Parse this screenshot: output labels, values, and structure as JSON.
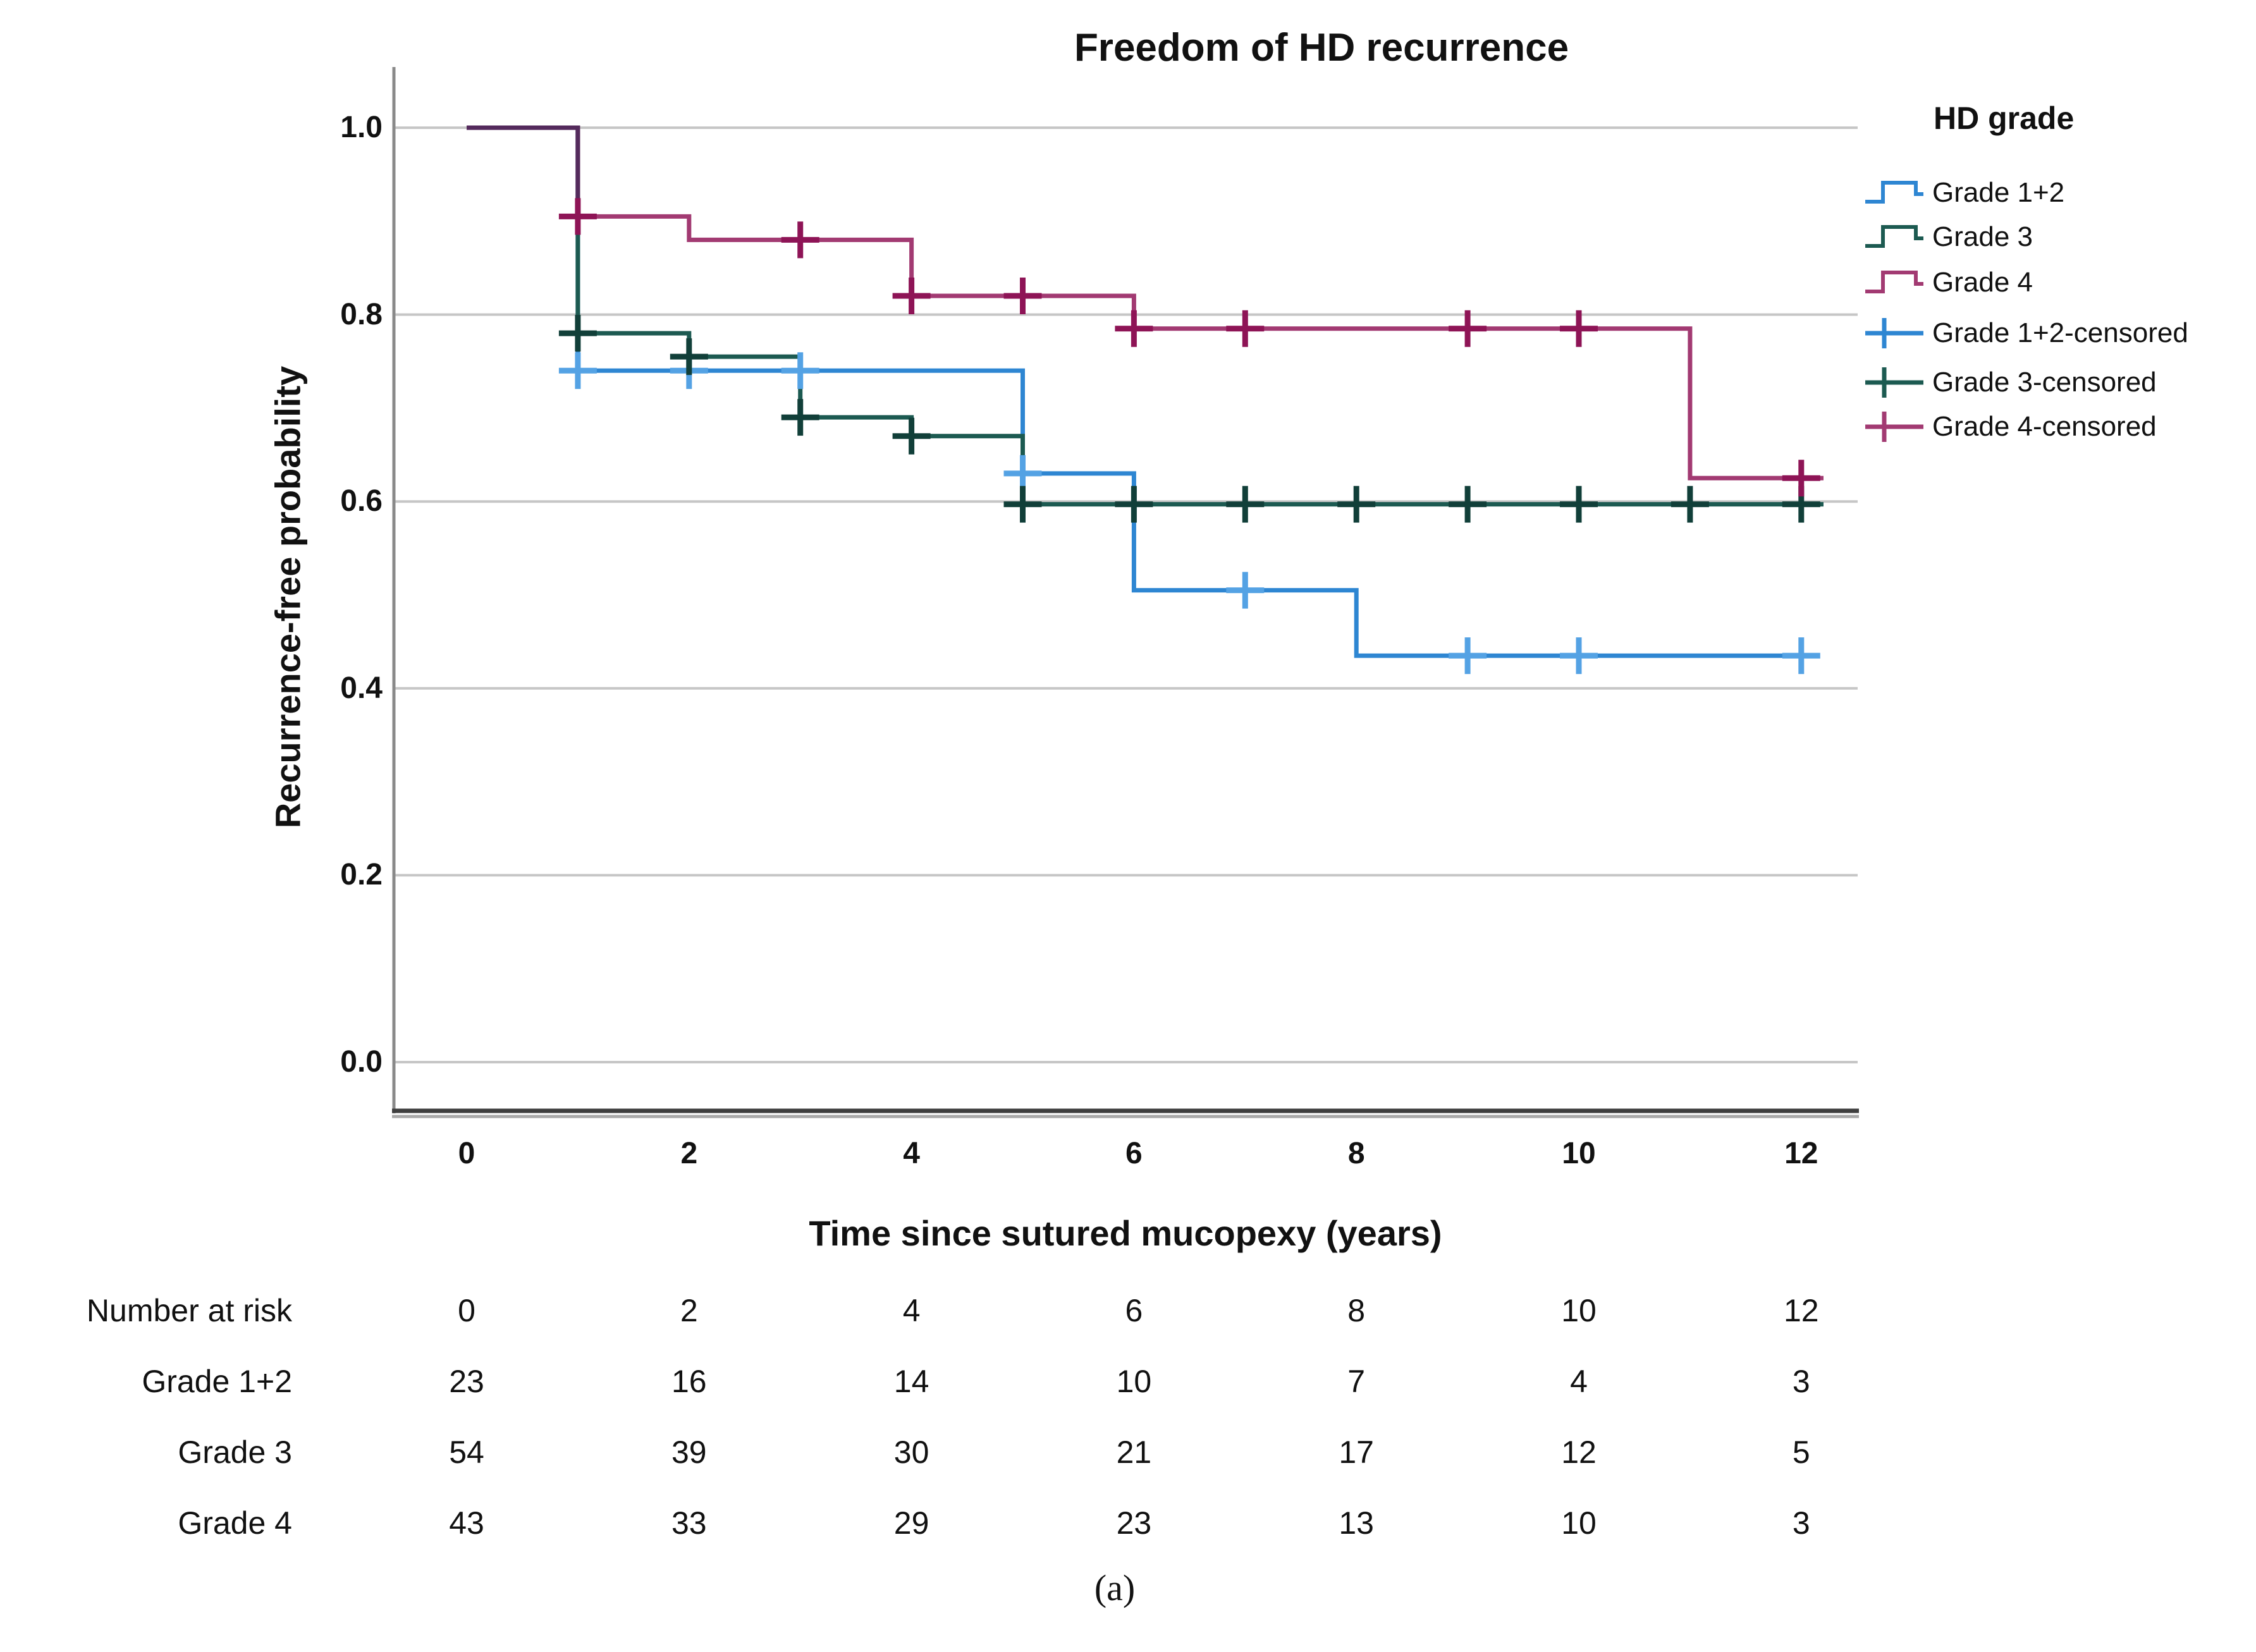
{
  "title": "Freedom of HD recurrence",
  "caption": "(a)",
  "axes": {
    "y_label": "Recurrence-free probability",
    "x_label": "Time since sutured mucopexy (years)",
    "y_tick_labels": [
      "1.0",
      "0.8",
      "0.6",
      "0.4",
      "0.2",
      "0.0"
    ],
    "y_tick_values": [
      1.0,
      0.8,
      0.6,
      0.4,
      0.2,
      0.0
    ],
    "x_tick_labels": [
      "0",
      "2",
      "4",
      "6",
      "8",
      "10",
      "12"
    ],
    "x_tick_values": [
      0,
      2,
      4,
      6,
      8,
      10,
      12
    ]
  },
  "legend": {
    "title": "HD grade",
    "entries": [
      {
        "label": "Grade 1+2",
        "type": "step",
        "color": "#2E86D2"
      },
      {
        "label": "Grade 3",
        "type": "step",
        "color": "#1C5A51"
      },
      {
        "label": "Grade 4",
        "type": "step",
        "color": "#A23A72"
      },
      {
        "label": "Grade 1+2-censored",
        "type": "plus",
        "color": "#2E86D2"
      },
      {
        "label": "Grade 3-censored",
        "type": "plus",
        "color": "#1C5A51"
      },
      {
        "label": "Grade 4-censored",
        "type": "plus",
        "color": "#A23A72"
      }
    ]
  },
  "chart_data": {
    "type": "line",
    "subtype": "kaplan-meier-step",
    "title": "Freedom of HD recurrence",
    "xlabel": "Time since sutured mucopexy (years)",
    "ylabel": "Recurrence-free probability",
    "xlim": [
      0,
      12
    ],
    "ylim": [
      0.0,
      1.0
    ],
    "grid": true,
    "legend_position": "right",
    "series": [
      {
        "name": "Grade 1+2",
        "color": "#2E86D2",
        "censor_color": "#54A2E4",
        "steps": [
          [
            0,
            1.0
          ],
          [
            1,
            0.74
          ],
          [
            5,
            0.63
          ],
          [
            6,
            0.505
          ],
          [
            8,
            0.435
          ]
        ],
        "end_x": 12.05,
        "censored": [
          [
            1,
            0.74
          ],
          [
            2,
            0.74
          ],
          [
            3,
            0.74
          ],
          [
            5,
            0.63
          ],
          [
            7,
            0.505
          ],
          [
            9,
            0.435
          ],
          [
            10,
            0.435
          ],
          [
            12,
            0.435
          ]
        ]
      },
      {
        "name": "Grade 3",
        "color": "#1C5A51",
        "censor_color": "#113F39",
        "steps": [
          [
            0,
            1.0
          ],
          [
            1,
            0.78
          ],
          [
            2,
            0.755
          ],
          [
            3,
            0.69
          ],
          [
            4,
            0.67
          ],
          [
            5,
            0.597
          ]
        ],
        "end_x": 12.2,
        "censored": [
          [
            1,
            0.78
          ],
          [
            2,
            0.755
          ],
          [
            3,
            0.69
          ],
          [
            4,
            0.67
          ],
          [
            5,
            0.597
          ],
          [
            6,
            0.597
          ],
          [
            7,
            0.597
          ],
          [
            8,
            0.597
          ],
          [
            9,
            0.597
          ],
          [
            10,
            0.597
          ],
          [
            11,
            0.597
          ],
          [
            12,
            0.597
          ]
        ]
      },
      {
        "name": "Grade 4",
        "color": "#A23A72",
        "censor_color": "#8E1456",
        "steps": [
          [
            0,
            1.0
          ],
          [
            1,
            0.905
          ],
          [
            2,
            0.88
          ],
          [
            4,
            0.82
          ],
          [
            6,
            0.785
          ],
          [
            11,
            0.625
          ]
        ],
        "end_x": 12.2,
        "censored": [
          [
            1,
            0.905
          ],
          [
            3,
            0.88
          ],
          [
            4,
            0.82
          ],
          [
            5,
            0.82
          ],
          [
            6,
            0.785
          ],
          [
            7,
            0.785
          ],
          [
            9,
            0.785
          ],
          [
            10,
            0.785
          ],
          [
            12,
            0.625
          ]
        ]
      }
    ],
    "overlap_segment": {
      "color": "#542A5C",
      "from": [
        0,
        1.0
      ],
      "corner": [
        1,
        1.0
      ],
      "to": [
        1,
        0.905
      ]
    }
  },
  "risk_table": {
    "header_label": "Number at risk",
    "time_points": [
      "0",
      "2",
      "4",
      "6",
      "8",
      "10",
      "12"
    ],
    "rows": [
      {
        "label": "Grade 1+2",
        "values": [
          "23",
          "16",
          "14",
          "10",
          "7",
          "4",
          "3"
        ]
      },
      {
        "label": "Grade 3",
        "values": [
          "54",
          "39",
          "30",
          "21",
          "17",
          "12",
          "5"
        ]
      },
      {
        "label": "Grade 4",
        "values": [
          "43",
          "33",
          "29",
          "23",
          "13",
          "10",
          "3"
        ]
      }
    ]
  },
  "colors": {
    "grid": "#C6C6C6",
    "frame": "#8A8A8A",
    "axis_dark": "#3F3F3F",
    "axis_shadow": "#A9A9A9",
    "background": "#FFFFFF"
  }
}
